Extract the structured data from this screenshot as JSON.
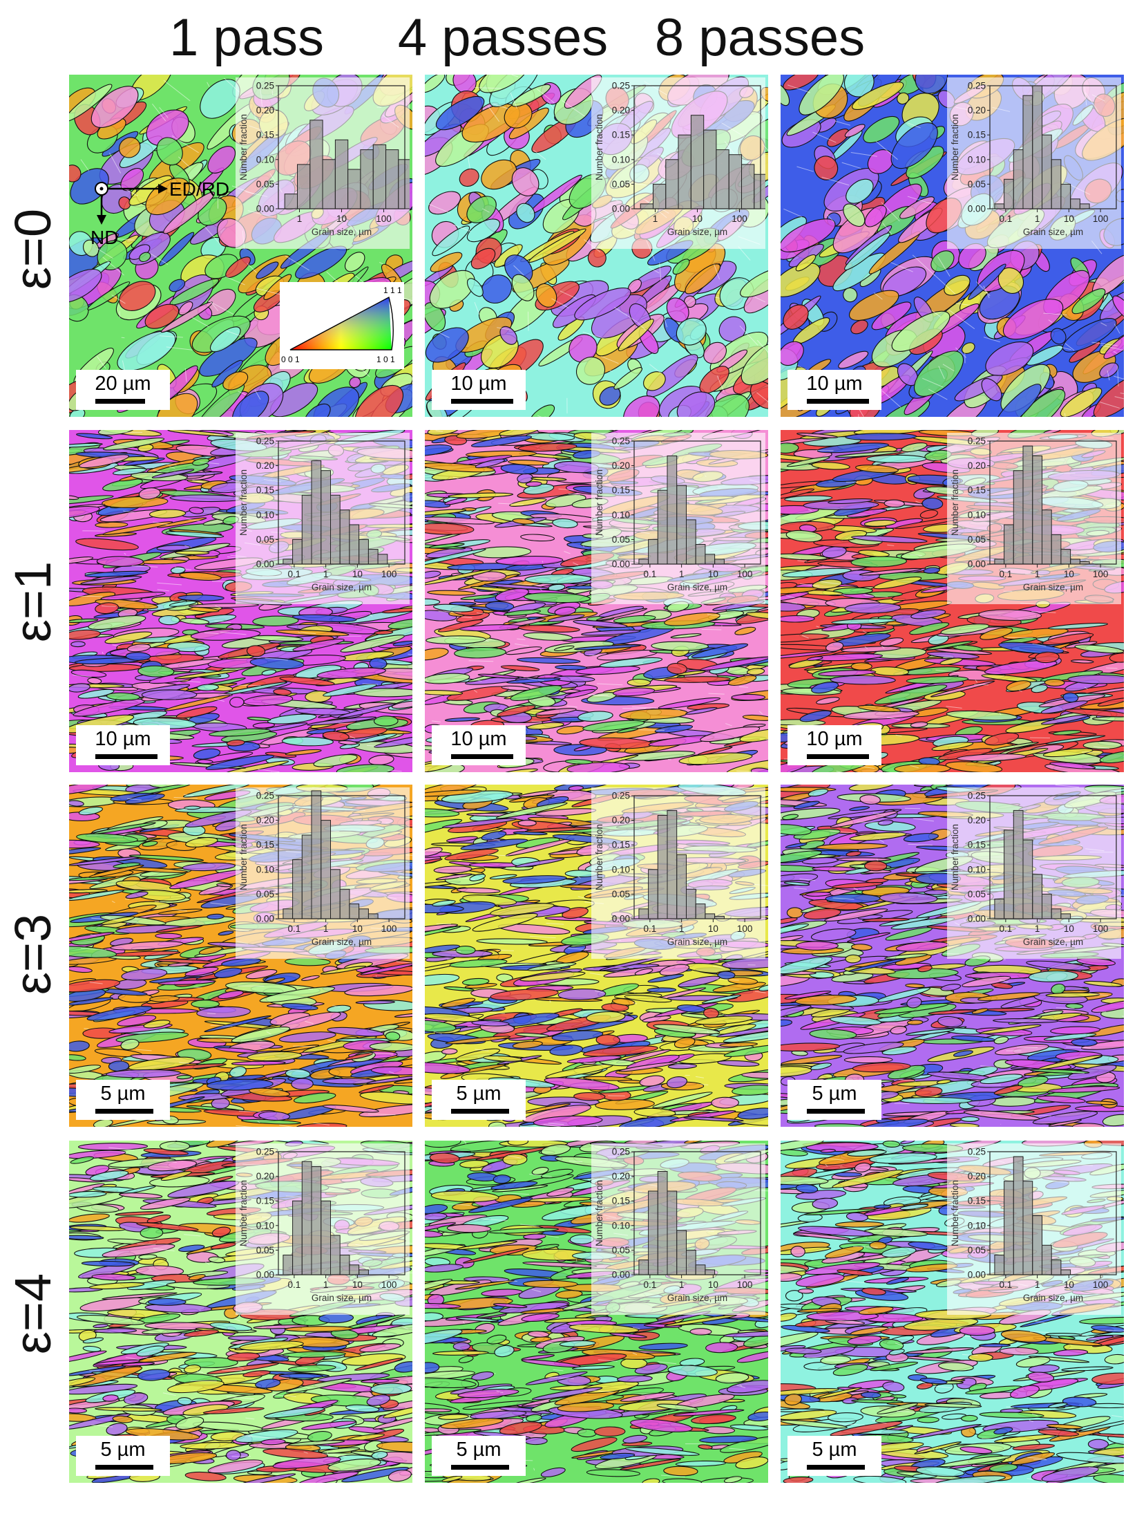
{
  "columns": [
    "1 pass",
    "4 passes",
    "8 passes"
  ],
  "rows": [
    "ε=0",
    "ε=1",
    "ε=3",
    "ε=4"
  ],
  "colors": {
    "green": "#6fe36a",
    "cyan": "#8ff2e0",
    "blue": "#3e5de8",
    "magenta": "#e055e8",
    "pink": "#f58ed5",
    "red": "#f04a4a",
    "orange": "#f5a623",
    "yellow": "#e8e84a",
    "violet": "#b06cf0",
    "lightgreen": "#b9f79a"
  },
  "coordinate_system": {
    "horizontal": "ED/RD",
    "vertical": "ND"
  },
  "ipf_key_labels": {
    "top": "1 1 1",
    "left": "0 0 1",
    "right": "1 0 1"
  },
  "histogram_axes": {
    "xlabel": "Grain size, µm",
    "ylabel": "Number fraction",
    "yticks": [
      "0.00",
      "0.05",
      "0.10",
      "0.15",
      "0.20",
      "0.25"
    ],
    "xticks_wide": [
      "1",
      "10",
      "100"
    ],
    "xticks_small": [
      "0.1",
      "1",
      "10",
      "100"
    ]
  },
  "panels": [
    {
      "scale": "20 µm",
      "hist": {
        "xmin_log": -0.5,
        "xticks": [
          "1",
          "10",
          "100"
        ],
        "bars": [
          0.03,
          0.09,
          0.18,
          0.1,
          0.14,
          0.08,
          0.12,
          0.13,
          0.12,
          0.1,
          0.05,
          0.02
        ]
      }
    },
    {
      "scale": "10 µm",
      "hist": {
        "xmin_log": -0.5,
        "xticks": [
          "1",
          "10",
          "100"
        ],
        "bars": [
          0.01,
          0.05,
          0.1,
          0.15,
          0.19,
          0.16,
          0.12,
          0.11,
          0.09,
          0.07,
          0.03,
          0.02
        ]
      }
    },
    {
      "scale": "10 µm",
      "hist": {
        "xmin_log": -1.5,
        "xticks": [
          "0.1",
          "1",
          "10",
          "100"
        ],
        "bars": [
          0.01,
          0.06,
          0.12,
          0.23,
          0.25,
          0.15,
          0.1,
          0.05,
          0.02,
          0.01
        ]
      }
    },
    {
      "scale": "10 µm",
      "hist": {
        "xmin_log": -1.5,
        "xticks": [
          "0.1",
          "1",
          "10",
          "100"
        ],
        "bars": [
          0.01,
          0.05,
          0.14,
          0.21,
          0.19,
          0.14,
          0.11,
          0.08,
          0.05,
          0.03,
          0.02
        ]
      }
    },
    {
      "scale": "10 µm",
      "hist": {
        "xmin_log": -1.5,
        "xticks": [
          "0.1",
          "1",
          "10",
          "100"
        ],
        "bars": [
          0.01,
          0.05,
          0.15,
          0.22,
          0.16,
          0.09,
          0.04,
          0.02,
          0.01
        ]
      }
    },
    {
      "scale": "10 µm",
      "hist": {
        "xmin_log": -1.5,
        "xticks": [
          "0.1",
          "1",
          "10",
          "100"
        ],
        "bars": [
          0.01,
          0.08,
          0.19,
          0.24,
          0.22,
          0.11,
          0.06,
          0.03,
          0.01,
          0.005
        ]
      }
    },
    {
      "scale": "5 µm",
      "hist": {
        "xmin_log": -1.5,
        "xticks": [
          "0.1",
          "1",
          "10",
          "100"
        ],
        "bars": [
          0.02,
          0.12,
          0.17,
          0.26,
          0.2,
          0.1,
          0.06,
          0.03,
          0.02,
          0.01
        ]
      }
    },
    {
      "scale": "5 µm",
      "hist": {
        "xmin_log": -1.5,
        "xticks": [
          "0.1",
          "1",
          "10",
          "100"
        ],
        "bars": [
          0.02,
          0.1,
          0.21,
          0.22,
          0.13,
          0.06,
          0.03,
          0.01,
          0.005
        ]
      }
    },
    {
      "scale": "5 µm",
      "hist": {
        "xmin_log": -1.5,
        "xticks": [
          "0.1",
          "1",
          "10",
          "100"
        ],
        "bars": [
          0.04,
          0.18,
          0.22,
          0.16,
          0.09,
          0.05,
          0.02,
          0.01
        ]
      }
    },
    {
      "scale": "5 µm",
      "hist": {
        "xmin_log": -1.5,
        "xticks": [
          "0.1",
          "1",
          "10",
          "100"
        ],
        "bars": [
          0.04,
          0.15,
          0.23,
          0.22,
          0.15,
          0.08,
          0.04,
          0.02,
          0.01
        ]
      }
    },
    {
      "scale": "5 µm",
      "hist": {
        "xmin_log": -1.5,
        "xticks": [
          "0.1",
          "1",
          "10",
          "100"
        ],
        "bars": [
          0.03,
          0.17,
          0.21,
          0.17,
          0.09,
          0.05,
          0.02,
          0.01
        ]
      }
    },
    {
      "scale": "5 µm",
      "hist": {
        "xmin_log": -1.5,
        "xticks": [
          "0.1",
          "1",
          "10",
          "100"
        ],
        "bars": [
          0.04,
          0.19,
          0.24,
          0.19,
          0.12,
          0.06,
          0.03,
          0.01
        ]
      }
    }
  ]
}
